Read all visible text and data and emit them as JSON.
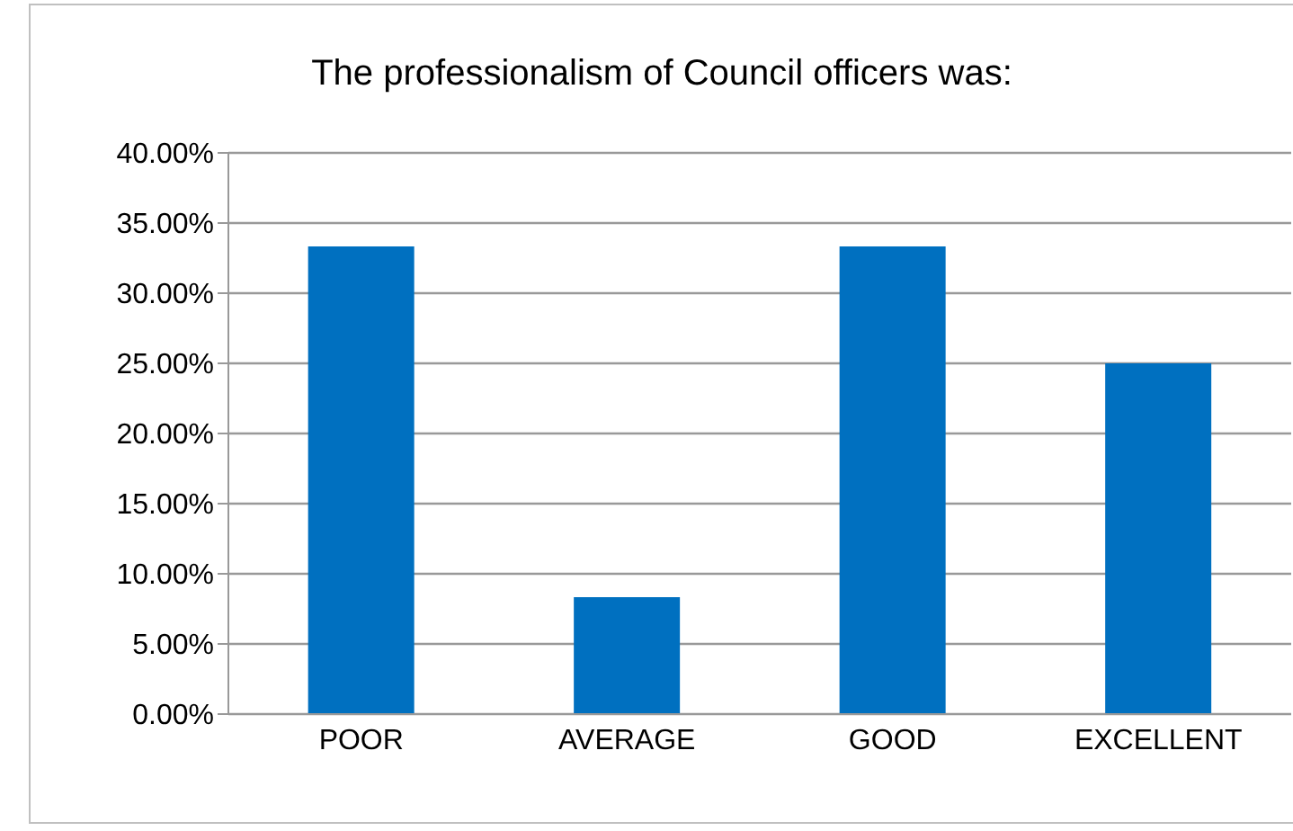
{
  "chart_data": {
    "type": "bar",
    "title": "The professionalism of Council officers was:",
    "categories": [
      "POOR",
      "AVERAGE",
      "GOOD",
      "EXCELLENT"
    ],
    "values": [
      33.33,
      8.33,
      33.33,
      25
    ],
    "color": "#0070c0",
    "ylim": [
      0,
      40
    ],
    "yticks": [
      {
        "value": 0,
        "label": "0.00%"
      },
      {
        "value": 5,
        "label": "5.00%"
      },
      {
        "value": 10,
        "label": "10.00%"
      },
      {
        "value": 15,
        "label": "15.00%"
      },
      {
        "value": 20,
        "label": "20.00%"
      },
      {
        "value": 25,
        "label": "25.00%"
      },
      {
        "value": 30,
        "label": "30.00%"
      },
      {
        "value": 35,
        "label": "35.00%"
      },
      {
        "value": 40,
        "label": "40.00%"
      }
    ],
    "grid": "y"
  }
}
